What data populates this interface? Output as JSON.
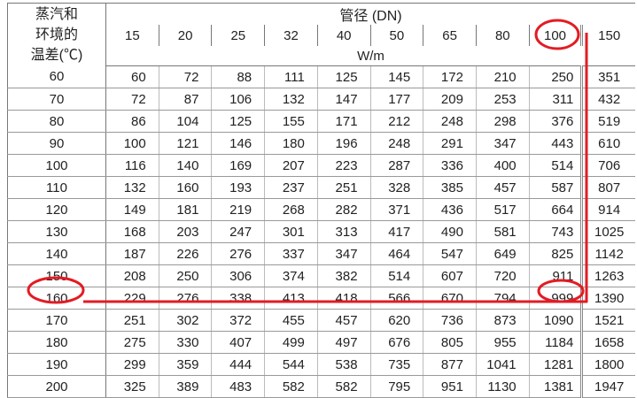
{
  "table": {
    "row_header": [
      "蒸汽和",
      "环境的",
      "温差(℃)"
    ],
    "group_header": "管径 (DN)",
    "unit": "W/m",
    "columns": [
      "15",
      "20",
      "25",
      "32",
      "40",
      "50",
      "65",
      "80",
      "100",
      "150"
    ],
    "rows": [
      {
        "dt": "60",
        "values": [
          "60",
          "72",
          "88",
          "111",
          "125",
          "145",
          "172",
          "210",
          "250",
          "351"
        ]
      },
      {
        "dt": "70",
        "values": [
          "72",
          "87",
          "106",
          "132",
          "147",
          "177",
          "209",
          "253",
          "311",
          "432"
        ]
      },
      {
        "dt": "80",
        "values": [
          "86",
          "104",
          "125",
          "155",
          "171",
          "212",
          "248",
          "298",
          "376",
          "519"
        ]
      },
      {
        "dt": "90",
        "values": [
          "100",
          "121",
          "146",
          "180",
          "196",
          "248",
          "291",
          "347",
          "443",
          "610"
        ]
      },
      {
        "dt": "100",
        "values": [
          "116",
          "140",
          "169",
          "207",
          "223",
          "287",
          "336",
          "400",
          "514",
          "706"
        ]
      },
      {
        "dt": "110",
        "values": [
          "132",
          "160",
          "193",
          "237",
          "251",
          "328",
          "385",
          "457",
          "587",
          "807"
        ]
      },
      {
        "dt": "120",
        "values": [
          "149",
          "181",
          "219",
          "268",
          "282",
          "371",
          "436",
          "517",
          "664",
          "914"
        ]
      },
      {
        "dt": "130",
        "values": [
          "168",
          "203",
          "247",
          "301",
          "313",
          "417",
          "490",
          "581",
          "743",
          "1025"
        ]
      },
      {
        "dt": "140",
        "values": [
          "187",
          "226",
          "276",
          "337",
          "347",
          "464",
          "547",
          "649",
          "825",
          "1142"
        ]
      },
      {
        "dt": "150",
        "values": [
          "208",
          "250",
          "306",
          "374",
          "382",
          "514",
          "607",
          "720",
          "911",
          "1263"
        ]
      },
      {
        "dt": "160",
        "values": [
          "229",
          "276",
          "338",
          "413",
          "418",
          "566",
          "670",
          "794",
          "999",
          "1390"
        ]
      },
      {
        "dt": "170",
        "values": [
          "251",
          "302",
          "372",
          "455",
          "457",
          "620",
          "736",
          "873",
          "1090",
          "1521"
        ]
      },
      {
        "dt": "180",
        "values": [
          "275",
          "330",
          "407",
          "499",
          "497",
          "676",
          "805",
          "955",
          "1184",
          "1658"
        ]
      },
      {
        "dt": "190",
        "values": [
          "299",
          "359",
          "444",
          "544",
          "538",
          "735",
          "877",
          "1041",
          "1281",
          "1800"
        ]
      },
      {
        "dt": "200",
        "values": [
          "325",
          "389",
          "483",
          "582",
          "582",
          "795",
          "951",
          "1130",
          "1381",
          "1947"
        ]
      }
    ]
  },
  "annotation": {
    "color": "#e31b23",
    "highlight_column": "100",
    "highlight_row": "160",
    "highlight_value": "999"
  }
}
